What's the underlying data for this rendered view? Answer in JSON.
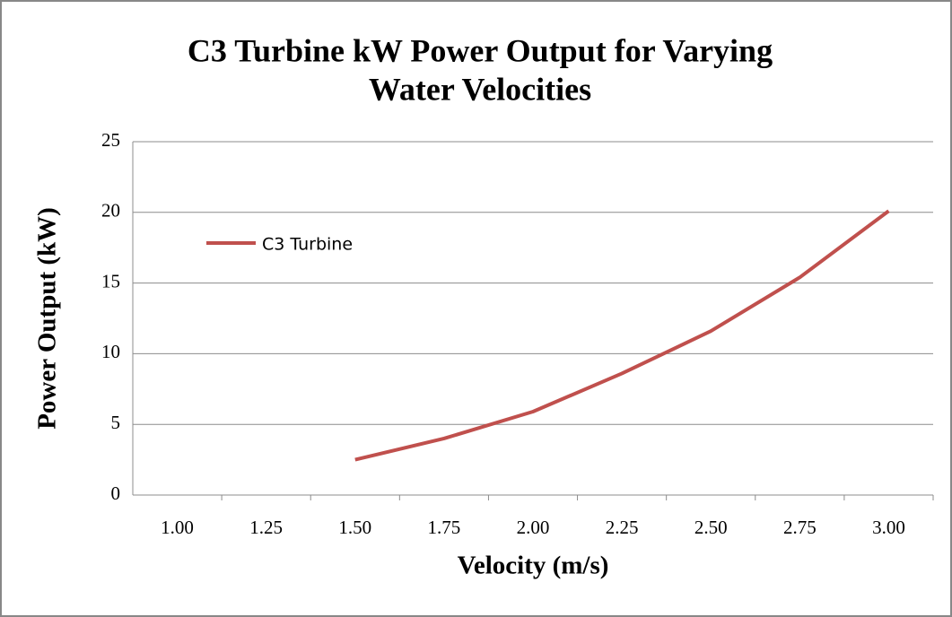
{
  "chart_data": {
    "type": "line",
    "title": [
      "C3 Turbine kW Power Output for Varying",
      "Water Velocities"
    ],
    "x_label": "Velocity (m/s)",
    "y_label": "Power Output (kW)",
    "categories": [
      "1.00",
      "1.25",
      "1.50",
      "1.75",
      "2.00",
      "2.25",
      "2.50",
      "2.75",
      "3.00"
    ],
    "series": [
      {
        "name": "C3 Turbine",
        "color": "#c0504d",
        "values": [
          null,
          null,
          2.5,
          4.0,
          5.9,
          8.6,
          11.6,
          15.4,
          20.1
        ]
      }
    ],
    "ylim": [
      0,
      25
    ],
    "yticks": [
      0,
      5,
      10,
      15,
      20,
      25
    ],
    "grid": true,
    "legend": "upper left"
  }
}
